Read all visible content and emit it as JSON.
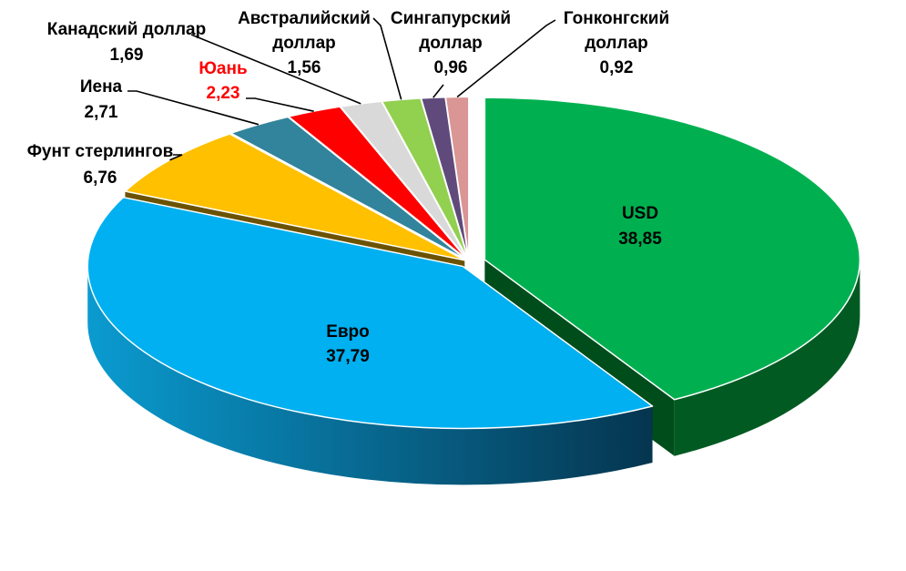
{
  "chart_data": {
    "type": "pie",
    "style": "3d-exploded",
    "title": "",
    "slices": [
      {
        "name": "USD",
        "value": 38.85,
        "value_label": "38,85",
        "color": "#00b050",
        "side_color": "#005a22"
      },
      {
        "name": "Евро",
        "value": 37.79,
        "value_label": "37,79",
        "color": "#00b0f0",
        "side_color": "#0a6f9c"
      },
      {
        "name": "Фунт стерлингов",
        "value": 6.76,
        "value_label": "6,76",
        "color": "#ffc000",
        "side_color": "#7f6000"
      },
      {
        "name": "Иена",
        "value": 2.71,
        "value_label": "2,71",
        "color": "#31849b",
        "side_color": "#1b4e5c"
      },
      {
        "name": "Юань",
        "value": 2.23,
        "value_label": "2,23",
        "color": "#ff0000",
        "side_color": "#9a0000",
        "label_color": "#ff0000"
      },
      {
        "name": "Канадский доллар",
        "value": 1.69,
        "value_label": "1,69",
        "color": "#d9d9d9",
        "side_color": "#8c8c8c"
      },
      {
        "name": "Австралийский доллар",
        "value": 1.56,
        "value_label": "1,56",
        "color": "#92d050",
        "side_color": "#55802a"
      },
      {
        "name": "Сингапурский доллар",
        "value": 0.96,
        "value_label": "0,96",
        "color": "#604a7b",
        "side_color": "#382a4a"
      },
      {
        "name": "Гонконгский доллар",
        "value": 0.92,
        "value_label": "0,92",
        "color": "#d99694",
        "side_color": "#8c5755"
      }
    ]
  }
}
